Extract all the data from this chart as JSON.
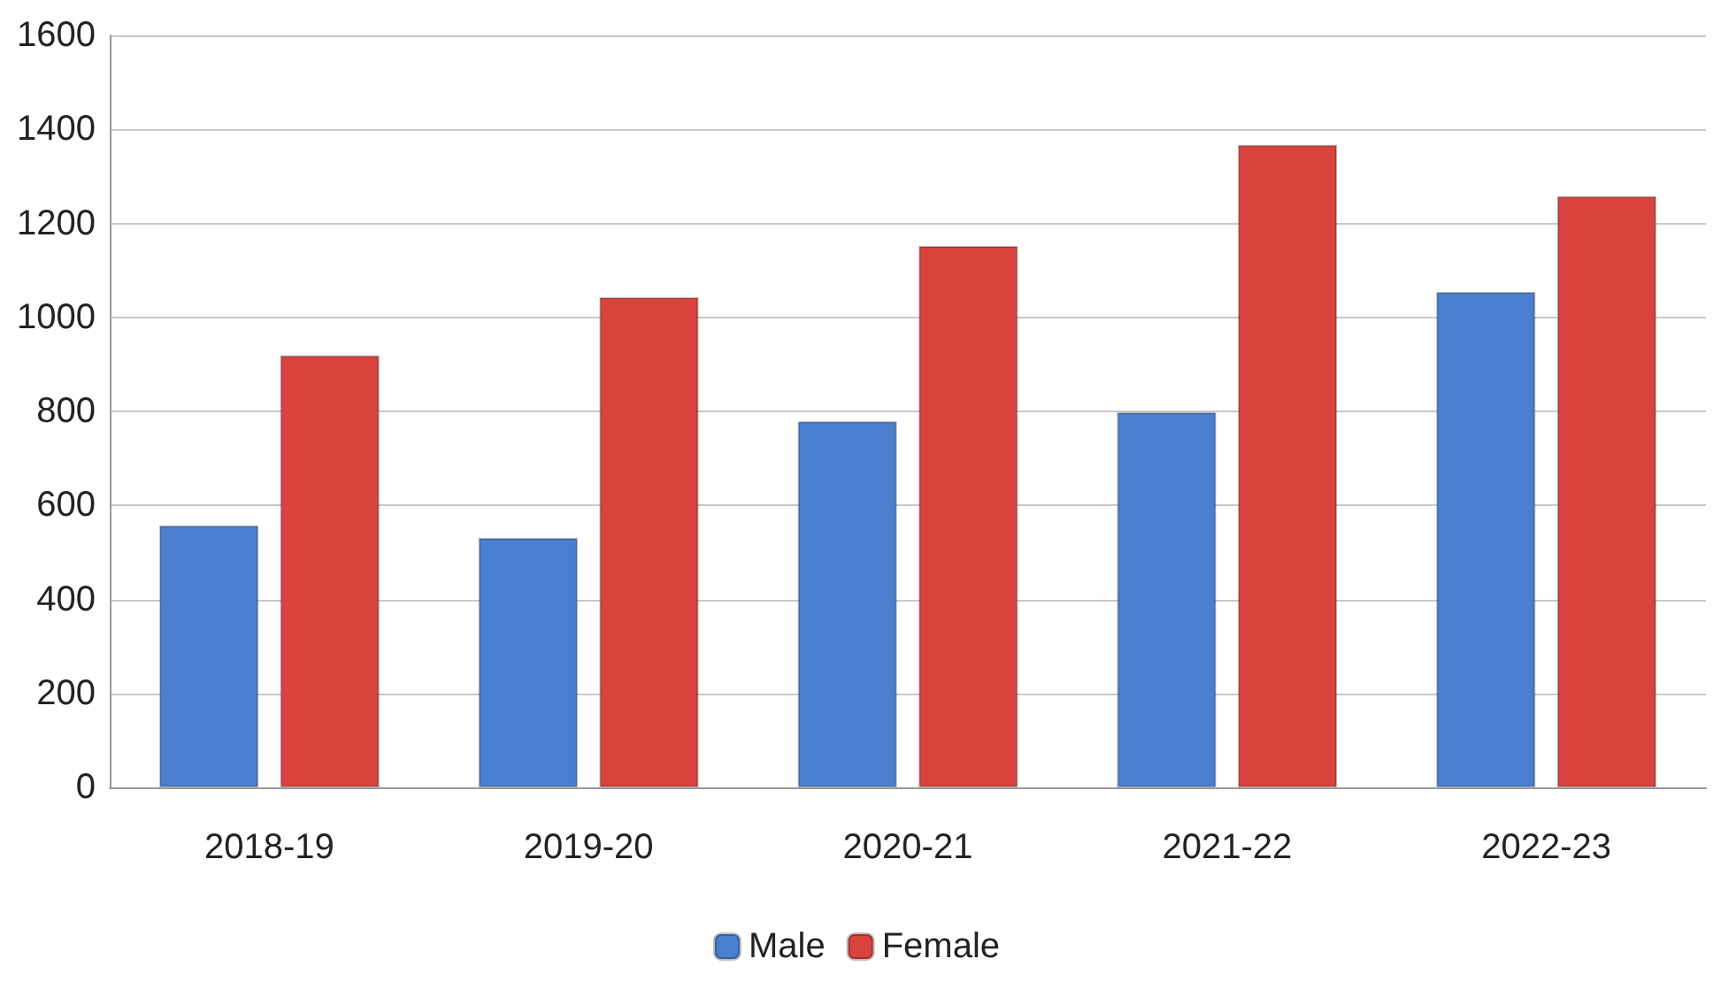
{
  "chart_data": {
    "type": "bar",
    "categories": [
      "2018-19",
      "2019-20",
      "2020-21",
      "2021-22",
      "2022-23"
    ],
    "series": [
      {
        "name": "Male",
        "color": "#4a7fcf",
        "values": [
          557,
          531,
          779,
          798,
          1054
        ]
      },
      {
        "name": "Female",
        "color": "#d8443d",
        "values": [
          919,
          1043,
          1152,
          1367,
          1258
        ]
      }
    ],
    "ylim": [
      0,
      1600
    ],
    "yticks": [
      0,
      200,
      400,
      600,
      800,
      1000,
      1200,
      1400,
      1600
    ],
    "grid": "y",
    "legend": "bottom"
  }
}
